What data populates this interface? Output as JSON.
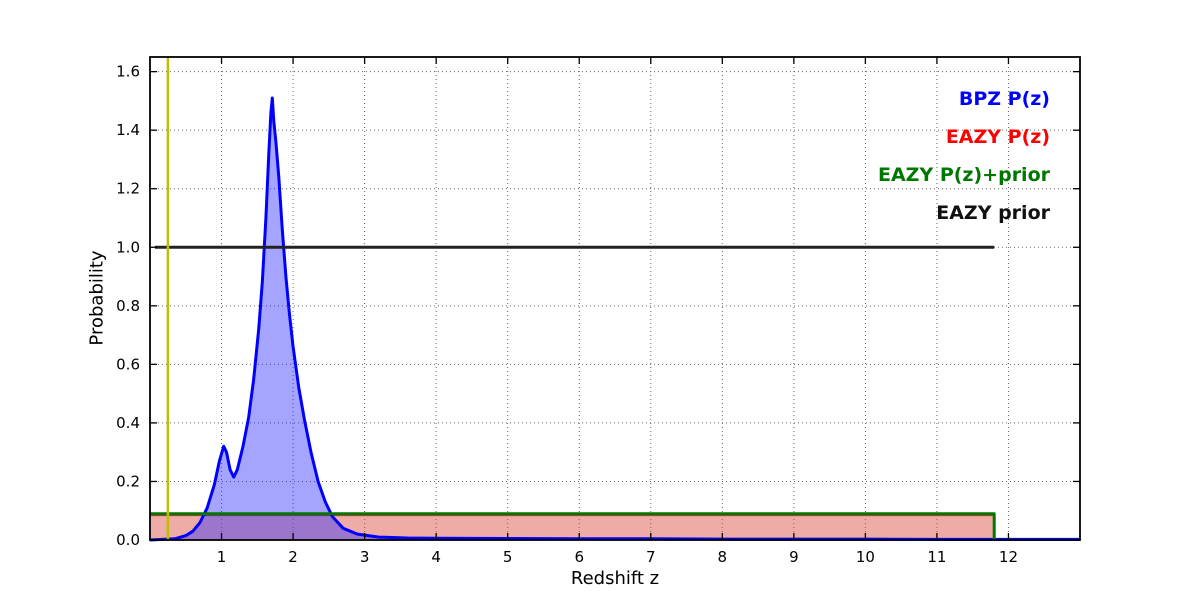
{
  "figure": {
    "background": "#ffffff"
  },
  "chart_data": {
    "type": "line",
    "title": "",
    "xlabel": "Redshift z",
    "ylabel": "Probability",
    "xlim": [
      0,
      13
    ],
    "ylim": [
      0,
      1.65
    ],
    "xticks": [
      1,
      2,
      3,
      4,
      5,
      6,
      7,
      8,
      9,
      10,
      11,
      12
    ],
    "yticks": [
      0.0,
      0.2,
      0.4,
      0.6,
      0.8,
      1.0,
      1.2,
      1.4,
      1.6
    ],
    "grid": true,
    "grid_style": "dotted",
    "frame_color": "#000000",
    "legend": {
      "position": "top-right",
      "entries": [
        {
          "label": "BPZ P(z)",
          "color": "#0000ff"
        },
        {
          "label": "EAZY P(z)",
          "color": "#ff0000"
        },
        {
          "label": "EAZY P(z)+prior",
          "color": "#007700"
        },
        {
          "label": "EAZY prior",
          "color": "#111111"
        }
      ]
    },
    "vline": {
      "x": 0.25,
      "color": "#bfbf00",
      "width": 2.5
    },
    "series": [
      {
        "name": "EAZY P(z)",
        "style": "filled-line",
        "color": "#cc3333",
        "fill": "rgba(220,70,60,0.45)",
        "width": 2,
        "points": [
          [
            0.0,
            0.085
          ],
          [
            11.8,
            0.085
          ],
          [
            11.8,
            0.0
          ]
        ]
      },
      {
        "name": "BPZ P(z)",
        "style": "filled-line",
        "color": "#0000ff",
        "fill": "rgba(40,40,255,0.42)",
        "width": 3,
        "points": [
          [
            0.0,
            0.0
          ],
          [
            0.35,
            0.004
          ],
          [
            0.5,
            0.015
          ],
          [
            0.6,
            0.03
          ],
          [
            0.7,
            0.06
          ],
          [
            0.8,
            0.11
          ],
          [
            0.9,
            0.19
          ],
          [
            0.97,
            0.27
          ],
          [
            1.03,
            0.32
          ],
          [
            1.07,
            0.3
          ],
          [
            1.12,
            0.24
          ],
          [
            1.17,
            0.215
          ],
          [
            1.22,
            0.24
          ],
          [
            1.3,
            0.32
          ],
          [
            1.38,
            0.42
          ],
          [
            1.45,
            0.55
          ],
          [
            1.52,
            0.72
          ],
          [
            1.57,
            0.88
          ],
          [
            1.62,
            1.1
          ],
          [
            1.66,
            1.32
          ],
          [
            1.69,
            1.46
          ],
          [
            1.71,
            1.51
          ],
          [
            1.73,
            1.43
          ],
          [
            1.76,
            1.36
          ],
          [
            1.8,
            1.24
          ],
          [
            1.85,
            1.06
          ],
          [
            1.9,
            0.9
          ],
          [
            1.95,
            0.77
          ],
          [
            2.0,
            0.66
          ],
          [
            2.08,
            0.52
          ],
          [
            2.16,
            0.41
          ],
          [
            2.25,
            0.3
          ],
          [
            2.35,
            0.2
          ],
          [
            2.45,
            0.13
          ],
          [
            2.55,
            0.08
          ],
          [
            2.7,
            0.04
          ],
          [
            2.9,
            0.02
          ],
          [
            3.2,
            0.01
          ],
          [
            3.6,
            0.007
          ],
          [
            4.0,
            0.006
          ],
          [
            5.0,
            0.005
          ],
          [
            6.0,
            0.004
          ],
          [
            7.0,
            0.004
          ],
          [
            8.0,
            0.003
          ],
          [
            9.0,
            0.003
          ],
          [
            10.0,
            0.003
          ],
          [
            11.0,
            0.002
          ],
          [
            12.0,
            0.002
          ],
          [
            13.0,
            0.002
          ]
        ]
      },
      {
        "name": "EAZY P(z)+prior",
        "style": "line",
        "color": "#007700",
        "width": 3,
        "points": [
          [
            0.0,
            0.09
          ],
          [
            11.8,
            0.09
          ],
          [
            11.8,
            0.0
          ]
        ]
      },
      {
        "name": "EAZY prior",
        "style": "line",
        "color": "#222222",
        "width": 3,
        "points": [
          [
            0.07,
            1.0
          ],
          [
            11.8,
            1.0
          ]
        ]
      }
    ]
  }
}
